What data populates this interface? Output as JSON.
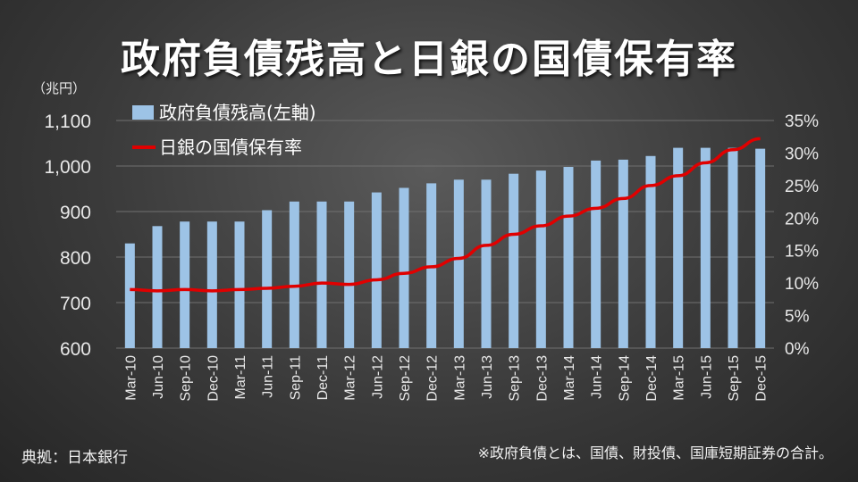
{
  "title": "政府負債残高と日銀の国債保有率",
  "unit_label": "（兆円）",
  "source_label": "典拠：日本銀行",
  "footnote": "※政府負債とは、国債、財投債、国庫短期証券の合計。",
  "colors": {
    "bar": "#9dc3e6",
    "line": "#e00000"
  },
  "chart_data": {
    "type": "bar",
    "categories": [
      "Mar-10",
      "Jun-10",
      "Sep-10",
      "Dec-10",
      "Mar-11",
      "Jun-11",
      "Sep-11",
      "Dec-11",
      "Mar-12",
      "Jun-12",
      "Sep-12",
      "Dec-12",
      "Mar-13",
      "Jun-13",
      "Sep-13",
      "Dec-13",
      "Mar-14",
      "Jun-14",
      "Sep-14",
      "Dec-14",
      "Mar-15",
      "Jun-15",
      "Sep-15",
      "Dec-15"
    ],
    "series": [
      {
        "name": "政府負債残高(左軸)",
        "type": "bar",
        "axis": "left",
        "values": [
          830,
          868,
          878,
          878,
          878,
          903,
          922,
          922,
          922,
          942,
          952,
          962,
          970,
          970,
          983,
          990,
          998,
          1012,
          1014,
          1022,
          1040,
          1040,
          1040,
          1038
        ]
      },
      {
        "name": "日銀の国債保有率",
        "type": "line",
        "axis": "right",
        "values": [
          9.0,
          8.8,
          9.0,
          8.8,
          9.0,
          9.2,
          9.5,
          10.0,
          9.8,
          10.5,
          11.5,
          12.5,
          13.8,
          15.8,
          17.5,
          18.8,
          20.3,
          21.5,
          23.0,
          25.0,
          26.5,
          28.5,
          30.5,
          32.2
        ]
      }
    ],
    "y_left": {
      "ylim": [
        600,
        1100
      ],
      "ticks": [
        "600",
        "700",
        "800",
        "900",
        "1,000",
        "1,100"
      ]
    },
    "y_right": {
      "ylim": [
        0,
        35
      ],
      "ticks": [
        "0%",
        "5%",
        "10%",
        "15%",
        "20%",
        "25%",
        "30%",
        "35%"
      ]
    },
    "legend_position": "top-left",
    "grid": true
  }
}
